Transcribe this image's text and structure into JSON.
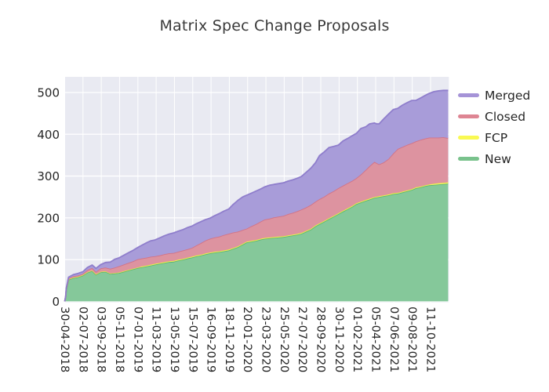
{
  "chart_data": {
    "type": "area",
    "stacked": true,
    "title": "Matrix Spec Change Proposals",
    "xlabel": "",
    "ylabel": "",
    "y_ticks": [
      0,
      100,
      200,
      300,
      400,
      500
    ],
    "y_axis_range_visible": [
      0,
      537
    ],
    "grid": "white gridlines on light slate panel (seaborn darkgrid style)",
    "legend_position": "right-top, outside plot",
    "x_tick_labels": [
      "30-04-2018",
      "02-07-2018",
      "03-09-2018",
      "05-11-2018",
      "07-01-2019",
      "11-03-2019",
      "13-05-2019",
      "15-07-2019",
      "16-09-2019",
      "18-11-2019",
      "20-01-2020",
      "23-03-2020",
      "25-05-2020",
      "27-07-2020",
      "28-09-2020",
      "30-11-2020",
      "01-02-2021",
      "05-04-2021",
      "07-06-2021",
      "09-08-2021",
      "11-10-2021"
    ],
    "x_tick_spacing_days": 63,
    "stack_order_bottom_to_top": [
      "New",
      "FCP",
      "Closed",
      "Merged"
    ],
    "series": [
      {
        "name": "Merged",
        "fill": "#a89cd9",
        "edge": "#8f7ecc",
        "legend_color": "#a593d7"
      },
      {
        "name": "Closed",
        "fill": "#dd93a0",
        "edge": "#d37386",
        "legend_color": "#de8593"
      },
      {
        "name": "FCP",
        "fill": "#f7f768",
        "edge": "#e9e93e",
        "legend_color": "#f9f952"
      },
      {
        "name": "New",
        "fill": "#85c89a",
        "edge": "#5cb574",
        "legend_color": "#79c28c"
      }
    ],
    "samples_note": "Each sample: [x position in tick units (1 unit = 63 days from 30-04-2018), New, FCP, Closed, Merged counts]. Values estimated from pixels; stacked total at right edge ~505.",
    "samples": [
      [
        0.0,
        0,
        0,
        0,
        0
      ],
      [
        0.05,
        10,
        0,
        1,
        1
      ],
      [
        0.09,
        28,
        1,
        2,
        2
      ],
      [
        0.21,
        52,
        1,
        2,
        3
      ],
      [
        0.47,
        56,
        1,
        3,
        4
      ],
      [
        0.73,
        58,
        1,
        3,
        5
      ],
      [
        0.99,
        62,
        1,
        3,
        5
      ],
      [
        1.24,
        69,
        1,
        5,
        6
      ],
      [
        1.5,
        73,
        1,
        6,
        7
      ],
      [
        1.71,
        64,
        1,
        6,
        8
      ],
      [
        1.97,
        70,
        1,
        8,
        9
      ],
      [
        2.23,
        71,
        1,
        9,
        12
      ],
      [
        2.49,
        66,
        1,
        11,
        16
      ],
      [
        2.74,
        67,
        1,
        13,
        20
      ],
      [
        2.96,
        68,
        1,
        15,
        20
      ],
      [
        3.21,
        71,
        1,
        16,
        22
      ],
      [
        3.47,
        74,
        1,
        17,
        24
      ],
      [
        3.73,
        77,
        1,
        18,
        26
      ],
      [
        3.99,
        80,
        1,
        20,
        28
      ],
      [
        4.24,
        82,
        2,
        19,
        32
      ],
      [
        4.5,
        84,
        2,
        19,
        36
      ],
      [
        4.71,
        86,
        2,
        19,
        38
      ],
      [
        4.93,
        88,
        2,
        18,
        39
      ],
      [
        5.19,
        90,
        2,
        18,
        42
      ],
      [
        5.44,
        92,
        2,
        19,
        44
      ],
      [
        5.7,
        94,
        2,
        19,
        46
      ],
      [
        5.96,
        95,
        2,
        19,
        48
      ],
      [
        6.21,
        98,
        2,
        19,
        49
      ],
      [
        6.47,
        100,
        2,
        20,
        50
      ],
      [
        6.73,
        103,
        2,
        20,
        52
      ],
      [
        6.94,
        105,
        2,
        21,
        52
      ],
      [
        7.2,
        108,
        2,
        24,
        52
      ],
      [
        7.46,
        110,
        2,
        28,
        51
      ],
      [
        7.71,
        113,
        2,
        31,
        50
      ],
      [
        7.93,
        115,
        2,
        33,
        49
      ],
      [
        8.19,
        117,
        2,
        34,
        52
      ],
      [
        8.44,
        118,
        2,
        35,
        55
      ],
      [
        8.7,
        120,
        2,
        37,
        57
      ],
      [
        8.96,
        122,
        2,
        38,
        59
      ],
      [
        9.21,
        126,
        2,
        37,
        67
      ],
      [
        9.47,
        130,
        2,
        35,
        75
      ],
      [
        9.73,
        136,
        2,
        33,
        79
      ],
      [
        9.94,
        141,
        2,
        31,
        80
      ],
      [
        10.2,
        143,
        2,
        35,
        79
      ],
      [
        10.46,
        145,
        2,
        38,
        79
      ],
      [
        10.71,
        148,
        2,
        41,
        78
      ],
      [
        10.93,
        150,
        2,
        44,
        78
      ],
      [
        11.19,
        151,
        2,
        45,
        80
      ],
      [
        11.44,
        152,
        2,
        47,
        79
      ],
      [
        11.7,
        153,
        2,
        48,
        79
      ],
      [
        11.96,
        154,
        2,
        49,
        79
      ],
      [
        12.21,
        156,
        2,
        51,
        79
      ],
      [
        12.47,
        158,
        2,
        52,
        79
      ],
      [
        12.73,
        160,
        2,
        54,
        79
      ],
      [
        12.94,
        162,
        2,
        56,
        79
      ],
      [
        13.2,
        167,
        2,
        56,
        84
      ],
      [
        13.46,
        172,
        2,
        57,
        88
      ],
      [
        13.71,
        180,
        2,
        57,
        93
      ],
      [
        13.93,
        185,
        2,
        58,
        104
      ],
      [
        14.19,
        191,
        2,
        58,
        107
      ],
      [
        14.44,
        197,
        2,
        59,
        110
      ],
      [
        14.7,
        203,
        2,
        59,
        107
      ],
      [
        14.96,
        209,
        2,
        60,
        103
      ],
      [
        15.21,
        215,
        2,
        60,
        107
      ],
      [
        15.47,
        221,
        2,
        60,
        107
      ],
      [
        15.73,
        227,
        2,
        60,
        108
      ],
      [
        15.94,
        233,
        2,
        60,
        107
      ],
      [
        16.2,
        237,
        2,
        65,
        110
      ],
      [
        16.46,
        241,
        2,
        72,
        103
      ],
      [
        16.67,
        244,
        2,
        78,
        101
      ],
      [
        16.93,
        248,
        2,
        84,
        93
      ],
      [
        17.06,
        249,
        2,
        80,
        94
      ],
      [
        17.19,
        250,
        2,
        76,
        97
      ],
      [
        17.44,
        252,
        2,
        79,
        104
      ],
      [
        17.7,
        254,
        2,
        85,
        107
      ],
      [
        17.96,
        257,
        2,
        95,
        105
      ],
      [
        18.21,
        258,
        2,
        105,
        97
      ],
      [
        18.47,
        261,
        2,
        107,
        100
      ],
      [
        18.73,
        264,
        2,
        109,
        101
      ],
      [
        18.98,
        267,
        2,
        110,
        102
      ],
      [
        19.2,
        271,
        2,
        110,
        98
      ],
      [
        19.46,
        273,
        2,
        112,
        100
      ],
      [
        19.71,
        276,
        2,
        112,
        103
      ],
      [
        19.93,
        278,
        2,
        112,
        106
      ],
      [
        20.19,
        279,
        3,
        110,
        110
      ],
      [
        20.44,
        280,
        3,
        109,
        112
      ],
      [
        20.7,
        281,
        3,
        109,
        112
      ],
      [
        20.96,
        282,
        3,
        106,
        114
      ]
    ]
  },
  "colors": {
    "canvas_bg": "#ffffff",
    "plot_bg": "#e9eaf2",
    "gridline": "#ffffff",
    "title_text": "#3a3a3a",
    "tick_text": "#262626",
    "legend_text": "#262626"
  }
}
